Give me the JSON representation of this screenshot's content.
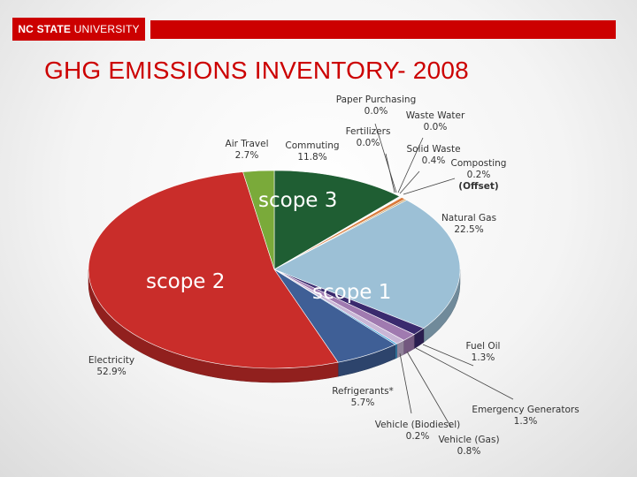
{
  "header": {
    "logo_text_bold": "NC STATE",
    "logo_text_regular": " UNIVERSITY",
    "colors": {
      "brand_red": "#cc0000"
    }
  },
  "title": "GHG EMISSIONS INVENTORY- 2008",
  "chart_data": {
    "type": "pie",
    "title": "GHG EMISSIONS INVENTORY- 2008",
    "scope_labels": [
      "scope 3",
      "scope 2",
      "scope 1"
    ],
    "slices": [
      {
        "name": "Commuting",
        "value_label": "11.8%",
        "value": 11.8,
        "scope": "scope 3",
        "color": "#1f5e33"
      },
      {
        "name": "Paper Purchasing",
        "value_label": "0.0%",
        "value": 0.0,
        "scope": "scope 3",
        "color": "#b9a07a"
      },
      {
        "name": "Waste Water",
        "value_label": "0.0%",
        "value": 0.0,
        "scope": "scope 3",
        "color": "#a88f6a"
      },
      {
        "name": "Fertilizers",
        "value_label": "0.0%",
        "value": 0.0,
        "scope": "scope 3",
        "color": "#c8b48c"
      },
      {
        "name": "Solid Waste",
        "value_label": "0.4%",
        "value": 0.4,
        "scope": "scope 3",
        "color": "#d9793a"
      },
      {
        "name": "Composting",
        "value_label": "0.2%",
        "note": "(Offset)",
        "value": 0.2,
        "scope": "scope 3",
        "color": "#c9a46a"
      },
      {
        "name": "Natural Gas",
        "value_label": "22.5%",
        "value": 22.5,
        "scope": "scope 1",
        "color": "#9cc0d6"
      },
      {
        "name": "Fuel Oil",
        "value_label": "1.3%",
        "value": 1.3,
        "scope": "scope 1",
        "color": "#3a2a6e"
      },
      {
        "name": "Emergency Generators",
        "value_label": "1.3%",
        "value": 1.3,
        "scope": "scope 1",
        "color": "#a07ab0"
      },
      {
        "name": "Vehicle (Gas)",
        "value_label": "0.8%",
        "value": 0.8,
        "scope": "scope 1",
        "color": "#c9b6d6"
      },
      {
        "name": "Vehicle (Biodiesel)",
        "value_label": "0.2%",
        "value": 0.2,
        "scope": "scope 1",
        "color": "#3fa0d8"
      },
      {
        "name": "Refrigerants*",
        "value_label": "5.7%",
        "value": 5.7,
        "scope": "scope 1",
        "color": "#3f5f96"
      },
      {
        "name": "Electricity",
        "value_label": "52.9%",
        "value": 52.9,
        "scope": "scope 2",
        "color": "#c92d2a"
      },
      {
        "name": "Air Travel",
        "value_label": "2.7%",
        "value": 2.7,
        "scope": "scope 3",
        "color": "#7aaa3a"
      }
    ]
  }
}
